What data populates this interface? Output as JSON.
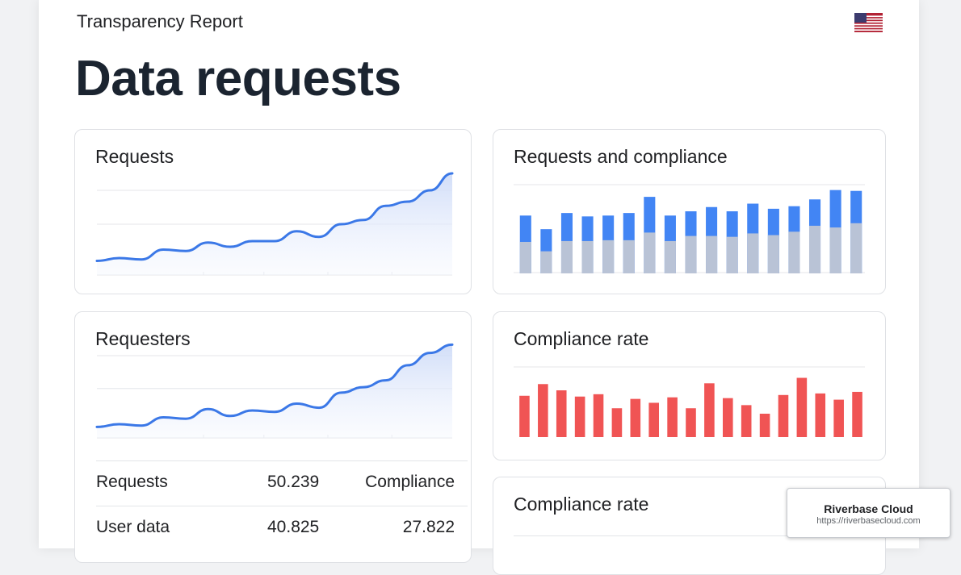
{
  "header": {
    "report_title": "Transparency Report",
    "page_title": "Data requests"
  },
  "colors": {
    "line": "#3b78e7",
    "bar_requests": "#4285f4",
    "bar_compliance": "#b9c3d6",
    "bar_rate": "#f05454"
  },
  "icons": {
    "flag": "us-flag-icon"
  },
  "cards": {
    "requests": {
      "title": "Requests"
    },
    "requests_compliance": {
      "title": "Requests and compliance"
    },
    "requesters": {
      "title": "Requesters"
    },
    "compliance_rate": {
      "title": "Compliance rate"
    },
    "compliance_rate_2": {
      "title": "Compliance rate"
    }
  },
  "table": {
    "rows": [
      {
        "label": "Requests",
        "value": "50.239",
        "extra": "Compliance"
      },
      {
        "label": "User data",
        "value": "40.825",
        "extra": "27.822"
      }
    ]
  },
  "watermark": {
    "name": "Riverbase Cloud",
    "url": "https://riverbasecloud.com"
  },
  "chart_data": [
    {
      "type": "line",
      "title": "Requests",
      "series": [
        {
          "values": [
            10,
            12,
            11,
            18,
            17,
            23,
            20,
            24,
            24,
            31,
            27,
            36,
            39,
            49,
            52,
            60,
            72
          ]
        }
      ],
      "ylim": [
        0,
        80
      ],
      "grid": true
    },
    {
      "type": "bar",
      "title": "Requests and compliance",
      "series": [
        {
          "values": [
            68,
            52,
            71,
            67,
            68,
            71,
            90,
            68,
            73,
            78,
            73,
            82,
            76,
            79,
            87,
            98,
            97
          ]
        },
        {
          "values": [
            37,
            26,
            38,
            38,
            39,
            39,
            48,
            38,
            44,
            44,
            43,
            47,
            45,
            49,
            56,
            54,
            59
          ]
        }
      ],
      "ylim": [
        0,
        110
      ],
      "grid": true
    },
    {
      "type": "line",
      "title": "Requesters",
      "series": [
        {
          "values": [
            8,
            10,
            9,
            15,
            14,
            21,
            16,
            20,
            19,
            25,
            22,
            33,
            37,
            42,
            53,
            62,
            68
          ]
        }
      ],
      "ylim": [
        0,
        80
      ],
      "grid": true
    },
    {
      "type": "bar",
      "title": "Compliance rate",
      "series": [
        {
          "values": [
            53,
            68,
            60,
            52,
            55,
            37,
            49,
            44,
            51,
            37,
            69,
            50,
            41,
            30,
            54,
            76,
            56,
            48,
            58
          ]
        }
      ],
      "ylim": [
        0,
        90
      ],
      "grid": true
    }
  ]
}
